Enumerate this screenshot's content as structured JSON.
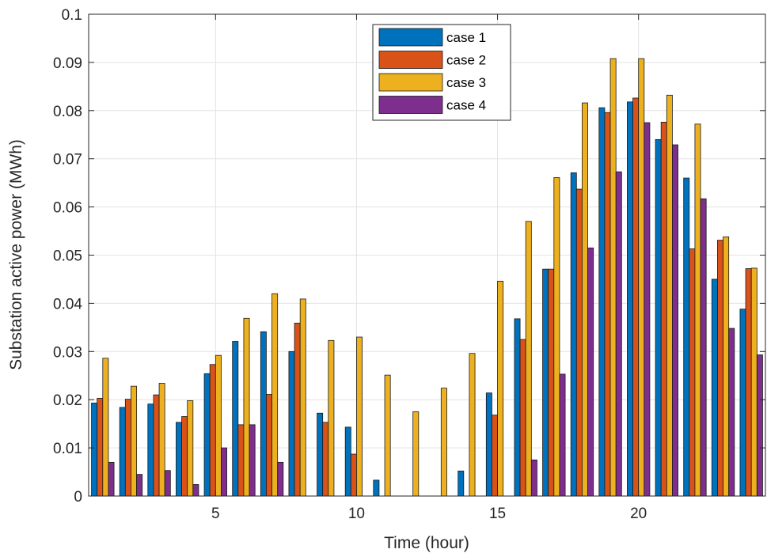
{
  "chart_data": {
    "type": "bar",
    "xlabel": "Time (hour)",
    "ylabel": "Substation active power (MWh)",
    "ylim": [
      0,
      0.1
    ],
    "xlim": [
      0.5,
      24.5
    ],
    "grid": true,
    "legend_position": "top-center",
    "x": [
      1,
      2,
      3,
      4,
      5,
      6,
      7,
      8,
      9,
      10,
      11,
      12,
      13,
      14,
      15,
      16,
      17,
      18,
      19,
      20,
      21,
      22,
      23,
      24
    ],
    "x_ticks": [
      5,
      10,
      15,
      20
    ],
    "x_tick_labels": [
      "5",
      "10",
      "15",
      "20"
    ],
    "y_ticks": [
      0,
      0.01,
      0.02,
      0.03,
      0.04,
      0.05,
      0.06,
      0.07,
      0.08,
      0.09,
      0.1
    ],
    "y_tick_labels": [
      "0",
      "0.01",
      "0.02",
      "0.03",
      "0.04",
      "0.05",
      "0.06",
      "0.07",
      "0.08",
      "0.09",
      "0.1"
    ],
    "series": [
      {
        "name": "case 1",
        "color": "#0072BD",
        "values": [
          0.0193,
          0.0184,
          0.0191,
          0.0153,
          0.0254,
          0.0321,
          0.0341,
          0.03,
          0.0172,
          0.0143,
          0.0033,
          0,
          0,
          0.0052,
          0.0214,
          0.0368,
          0.0471,
          0.0671,
          0.0806,
          0.0818,
          0.074,
          0.066,
          0.045,
          0.0388
        ]
      },
      {
        "name": "case 2",
        "color": "#D95319",
        "values": [
          0.0203,
          0.0201,
          0.021,
          0.0165,
          0.0273,
          0.0148,
          0.0211,
          0.0359,
          0.0153,
          0.0087,
          0,
          0,
          0,
          0,
          0.0168,
          0.0325,
          0.0471,
          0.0637,
          0.0796,
          0.0826,
          0.0776,
          0.0513,
          0.0531,
          0.0472
        ]
      },
      {
        "name": "case 3",
        "color": "#EDB120",
        "values": [
          0.0286,
          0.0228,
          0.0234,
          0.0198,
          0.0292,
          0.0369,
          0.042,
          0.0409,
          0.0323,
          0.033,
          0.0251,
          0.0175,
          0.0224,
          0.0296,
          0.0446,
          0.057,
          0.0661,
          0.0816,
          0.0908,
          0.0908,
          0.0832,
          0.0772,
          0.0538,
          0.0473
        ]
      },
      {
        "name": "case 4",
        "color": "#7E2F8E",
        "values": [
          0.007,
          0.0045,
          0.0053,
          0.0024,
          0.01,
          0.0148,
          0.007,
          0,
          0,
          0,
          0,
          0,
          0,
          0,
          0,
          0.0075,
          0.0253,
          0.0515,
          0.0673,
          0.0775,
          0.0729,
          0.0617,
          0.0348,
          0.0293
        ]
      }
    ]
  }
}
